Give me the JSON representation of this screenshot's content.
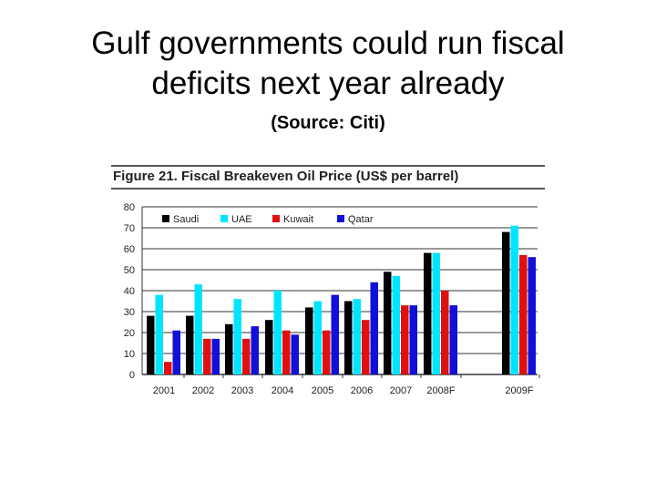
{
  "slide": {
    "title_line1": "Gulf governments could run fiscal",
    "title_line2": "deficits next year already",
    "source": "(Source: Citi)"
  },
  "chart_data": {
    "type": "bar",
    "title": "Figure 21. Fiscal Breakeven Oil Price (US$ per barrel)",
    "categories": [
      "2001",
      "2002",
      "2003",
      "2004",
      "2005",
      "2006",
      "2007",
      "2008F",
      "2009F"
    ],
    "series": [
      {
        "name": "Saudi",
        "color": "#000000",
        "values": [
          28,
          28,
          24,
          26,
          32,
          35,
          49,
          58,
          68
        ]
      },
      {
        "name": "UAE",
        "color": "#00e5ff",
        "values": [
          38,
          43,
          36,
          40,
          35,
          36,
          47,
          58,
          71
        ]
      },
      {
        "name": "Kuwait",
        "color": "#e01010",
        "values": [
          6,
          17,
          17,
          21,
          21,
          26,
          33,
          40,
          57
        ]
      },
      {
        "name": "Qatar",
        "color": "#1010d8",
        "values": [
          21,
          17,
          23,
          19,
          38,
          44,
          33,
          33,
          56
        ]
      }
    ],
    "ylim": [
      0,
      80
    ],
    "yticks": [
      0,
      10,
      20,
      30,
      40,
      50,
      60,
      70,
      80
    ],
    "grid": true,
    "legend_position": "top-left"
  }
}
